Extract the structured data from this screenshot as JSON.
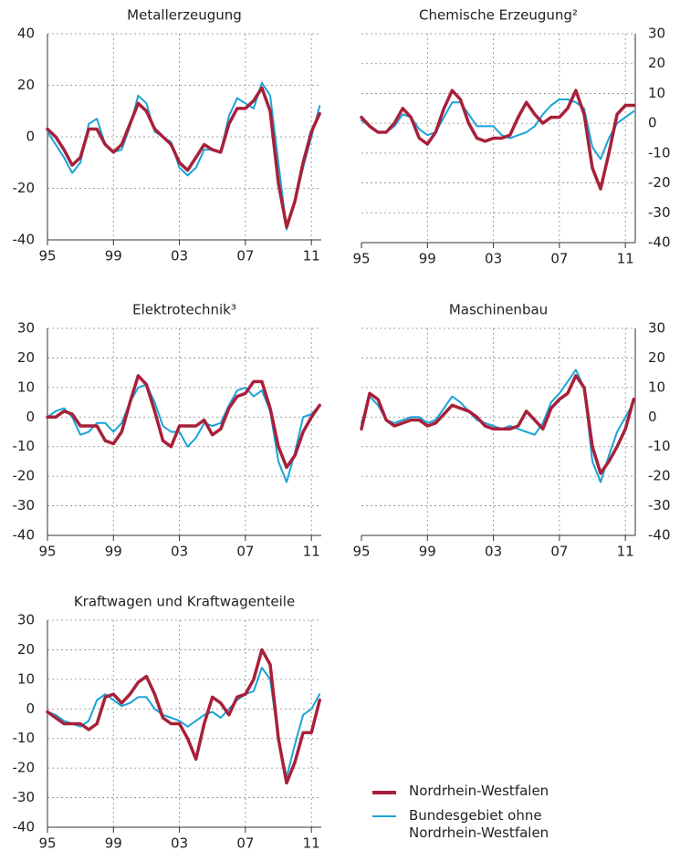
{
  "chart_data": [
    {
      "type": "line",
      "title": "Metallerzeugung",
      "x": [
        1995,
        1995.5,
        1996,
        1996.5,
        1997,
        1997.5,
        1998,
        1998.5,
        1999,
        1999.5,
        2000,
        2000.5,
        2001,
        2001.5,
        2002,
        2002.5,
        2003,
        2003.5,
        2004,
        2004.5,
        2005,
        2005.5,
        2006,
        2006.5,
        2007,
        2007.5,
        2008,
        2008.5,
        2009,
        2009.5,
        2010,
        2010.5,
        2011,
        2011.5
      ],
      "xlim": [
        1995,
        2011.6
      ],
      "xticks": [
        {
          "value": 1995,
          "label": "95"
        },
        {
          "value": 1999,
          "label": "99"
        },
        {
          "value": 2003,
          "label": "03"
        },
        {
          "value": 2007,
          "label": "07"
        },
        {
          "value": 2011,
          "label": "11"
        }
      ],
      "ylim": [
        -40,
        40
      ],
      "yticks": [
        -40,
        -20,
        0,
        20,
        40
      ],
      "grid": true,
      "series": [
        {
          "name": "Nordrhein-Westfalen",
          "color": "#a8203a",
          "values": [
            3,
            0,
            -5,
            -11,
            -8,
            3,
            3,
            -3,
            -6,
            -3,
            5,
            13,
            10,
            3,
            0,
            -3,
            -10,
            -13,
            -8,
            -3,
            -5,
            -6,
            5,
            11,
            11,
            14,
            19,
            10,
            -18,
            -35,
            -25,
            -10,
            2,
            9
          ]
        },
        {
          "name": "Bundesgebiet ohne Nordrhein-Westfalen",
          "color": "#1aa3d6",
          "values": [
            2,
            -3,
            -8,
            -14,
            -10,
            5,
            7,
            -3,
            -6,
            -5,
            4,
            16,
            13,
            2,
            0,
            -2,
            -12,
            -15,
            -12,
            -5,
            -5,
            -6,
            8,
            15,
            13,
            11,
            21,
            16,
            -10,
            -36,
            -25,
            -12,
            0,
            12
          ]
        }
      ]
    },
    {
      "type": "line",
      "title": "Chemische Erzeugung²",
      "x": [
        1995,
        1995.5,
        1996,
        1996.5,
        1997,
        1997.5,
        1998,
        1998.5,
        1999,
        1999.5,
        2000,
        2000.5,
        2001,
        2001.5,
        2002,
        2002.5,
        2003,
        2003.5,
        2004,
        2004.5,
        2005,
        2005.5,
        2006,
        2006.5,
        2007,
        2007.5,
        2008,
        2008.5,
        2009,
        2009.5,
        2010,
        2010.5,
        2011,
        2011.5
      ],
      "xlim": [
        1995,
        2011.6
      ],
      "xticks": [
        {
          "value": 1995,
          "label": "95"
        },
        {
          "value": 1999,
          "label": "99"
        },
        {
          "value": 2003,
          "label": "03"
        },
        {
          "value": 2007,
          "label": "07"
        },
        {
          "value": 2011,
          "label": "11"
        }
      ],
      "ylim": [
        -40,
        30
      ],
      "yticks": [
        -40,
        -30,
        -20,
        -10,
        0,
        10,
        20,
        30
      ],
      "grid": true,
      "series": [
        {
          "name": "Nordrhein-Westfalen",
          "color": "#a8203a",
          "values": [
            2,
            -1,
            -3,
            -3,
            0,
            5,
            2,
            -5,
            -7,
            -3,
            5,
            11,
            8,
            0,
            -5,
            -6,
            -5,
            -5,
            -4,
            2,
            7,
            3,
            0,
            2,
            2,
            5,
            11,
            3,
            -15,
            -22,
            -10,
            3,
            6,
            6
          ]
        },
        {
          "name": "Bundesgebiet ohne Nordrhein-Westfalen",
          "color": "#1aa3d6",
          "values": [
            1,
            -1,
            -3,
            -3,
            -1,
            3,
            2,
            -2,
            -4,
            -3,
            2,
            7,
            7,
            3,
            -1,
            -1,
            -1,
            -4,
            -5,
            -4,
            -3,
            -1,
            3,
            6,
            8,
            8,
            7,
            5,
            -8,
            -12,
            -5,
            0,
            2,
            4
          ]
        }
      ]
    },
    {
      "type": "line",
      "title": "Elektrotechnik³",
      "x": [
        1995,
        1995.5,
        1996,
        1996.5,
        1997,
        1997.5,
        1998,
        1998.5,
        1999,
        1999.5,
        2000,
        2000.5,
        2001,
        2001.5,
        2002,
        2002.5,
        2003,
        2003.5,
        2004,
        2004.5,
        2005,
        2005.5,
        2006,
        2006.5,
        2007,
        2007.5,
        2008,
        2008.5,
        2009,
        2009.5,
        2010,
        2010.5,
        2011,
        2011.5
      ],
      "xlim": [
        1995,
        2011.6
      ],
      "xticks": [
        {
          "value": 1995,
          "label": "95"
        },
        {
          "value": 1999,
          "label": "99"
        },
        {
          "value": 2003,
          "label": "03"
        },
        {
          "value": 2007,
          "label": "07"
        },
        {
          "value": 2011,
          "label": "11"
        }
      ],
      "ylim": [
        -40,
        30
      ],
      "yticks": [
        -40,
        -30,
        -20,
        -10,
        0,
        10,
        20,
        30
      ],
      "grid": true,
      "series": [
        {
          "name": "Nordrhein-Westfalen",
          "color": "#a8203a",
          "values": [
            0,
            0,
            2,
            1,
            -3,
            -3,
            -3,
            -8,
            -9,
            -5,
            5,
            14,
            11,
            2,
            -8,
            -10,
            -3,
            -3,
            -3,
            -1,
            -6,
            -4,
            3,
            7,
            8,
            12,
            12,
            3,
            -10,
            -17,
            -13,
            -5,
            0,
            4
          ]
        },
        {
          "name": "Bundesgebiet ohne Nordrhein-Westfalen",
          "color": "#1aa3d6",
          "values": [
            0,
            2,
            3,
            0,
            -6,
            -5,
            -2,
            -2,
            -5,
            -2,
            5,
            10,
            11,
            5,
            -3,
            -5,
            -5,
            -10,
            -7,
            -2,
            -3,
            -2,
            4,
            9,
            10,
            7,
            9,
            2,
            -15,
            -22,
            -12,
            0,
            1,
            4
          ]
        }
      ]
    },
    {
      "type": "line",
      "title": "Maschinenbau",
      "x": [
        1995,
        1995.5,
        1996,
        1996.5,
        1997,
        1997.5,
        1998,
        1998.5,
        1999,
        1999.5,
        2000,
        2000.5,
        2001,
        2001.5,
        2002,
        2002.5,
        2003,
        2003.5,
        2004,
        2004.5,
        2005,
        2005.5,
        2006,
        2006.5,
        2007,
        2007.5,
        2008,
        2008.5,
        2009,
        2009.5,
        2010,
        2010.5,
        2011,
        2011.5
      ],
      "xlim": [
        1995,
        2011.6
      ],
      "xticks": [
        {
          "value": 1995,
          "label": "95"
        },
        {
          "value": 1999,
          "label": "99"
        },
        {
          "value": 2003,
          "label": "03"
        },
        {
          "value": 2007,
          "label": "07"
        },
        {
          "value": 2011,
          "label": "11"
        }
      ],
      "ylim": [
        -40,
        30
      ],
      "yticks": [
        -40,
        -30,
        -20,
        -10,
        0,
        10,
        20,
        30
      ],
      "grid": true,
      "series": [
        {
          "name": "Nordrhein-Westfalen",
          "color": "#a8203a",
          "values": [
            -4,
            8,
            6,
            -1,
            -3,
            -2,
            -1,
            -1,
            -3,
            -2,
            1,
            4,
            3,
            2,
            0,
            -3,
            -4,
            -4,
            -4,
            -3,
            2,
            -1,
            -4,
            3,
            6,
            8,
            14,
            10,
            -10,
            -19,
            -15,
            -10,
            -4,
            6
          ]
        },
        {
          "name": "Bundesgebiet ohne Nordrhein-Westfalen",
          "color": "#1aa3d6",
          "values": [
            -2,
            7,
            4,
            -1,
            -2,
            -1,
            0,
            0,
            -2,
            -1,
            3,
            7,
            5,
            2,
            -1,
            -2,
            -3,
            -4,
            -3,
            -4,
            -5,
            -6,
            -2,
            5,
            8,
            12,
            16,
            10,
            -15,
            -22,
            -13,
            -5,
            0,
            5
          ]
        }
      ]
    },
    {
      "type": "line",
      "title": "Kraftwagen und Kraftwagenteile",
      "x": [
        1995,
        1995.5,
        1996,
        1996.5,
        1997,
        1997.5,
        1998,
        1998.5,
        1999,
        1999.5,
        2000,
        2000.5,
        2001,
        2001.5,
        2002,
        2002.5,
        2003,
        2003.5,
        2004,
        2004.5,
        2005,
        2005.5,
        2006,
        2006.5,
        2007,
        2007.5,
        2008,
        2008.5,
        2009,
        2009.5,
        2010,
        2010.5,
        2011,
        2011.5
      ],
      "xlim": [
        1995,
        2011.6
      ],
      "xticks": [
        {
          "value": 1995,
          "label": "95"
        },
        {
          "value": 1999,
          "label": "99"
        },
        {
          "value": 2003,
          "label": "03"
        },
        {
          "value": 2007,
          "label": "07"
        },
        {
          "value": 2011,
          "label": "11"
        }
      ],
      "ylim": [
        -40,
        30
      ],
      "yticks": [
        -40,
        -30,
        -20,
        -10,
        0,
        10,
        20,
        30
      ],
      "grid": true,
      "series": [
        {
          "name": "Nordrhein-Westfalen",
          "color": "#a8203a",
          "values": [
            -1,
            -3,
            -5,
            -5,
            -5,
            -7,
            -5,
            4,
            5,
            2,
            5,
            9,
            11,
            5,
            -3,
            -5,
            -5,
            -10,
            -17,
            -5,
            4,
            2,
            -2,
            4,
            5,
            10,
            20,
            15,
            -10,
            -25,
            -18,
            -8,
            -8,
            3
          ]
        },
        {
          "name": "Bundesgebiet ohne Nordrhein-Westfalen",
          "color": "#1aa3d6",
          "values": [
            -1,
            -2,
            -4,
            -5,
            -6,
            -4,
            3,
            5,
            3,
            1,
            2,
            4,
            4,
            0,
            -2,
            -3,
            -4,
            -6,
            -4,
            -2,
            -1,
            -3,
            0,
            3,
            5,
            6,
            14,
            10,
            -10,
            -23,
            -12,
            -2,
            0,
            5
          ]
        }
      ]
    }
  ]
}
